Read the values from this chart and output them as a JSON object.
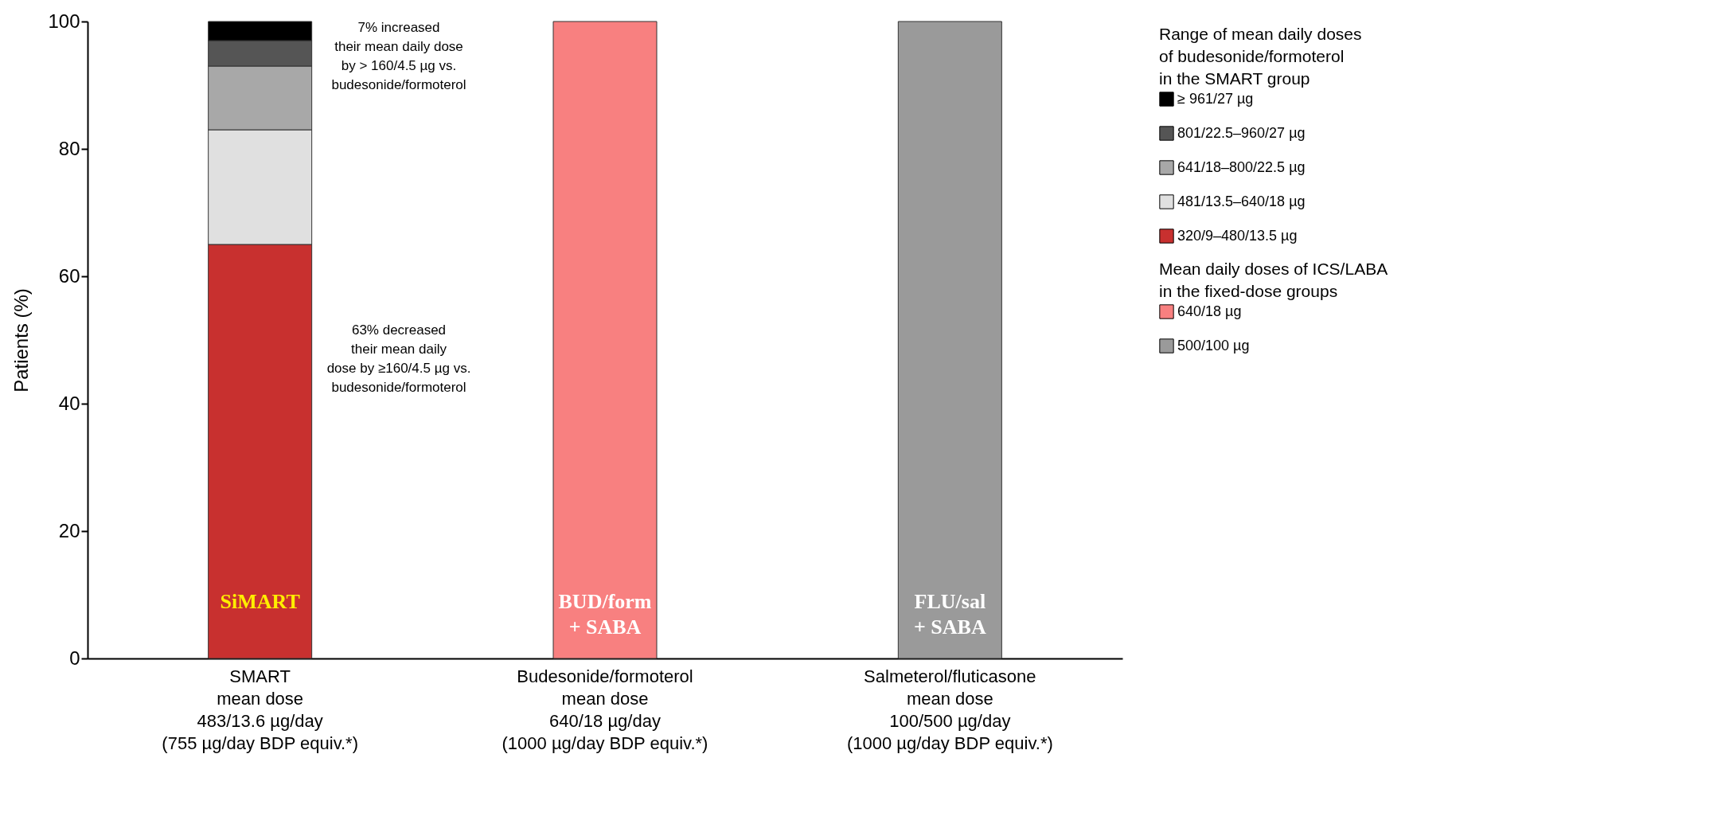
{
  "chart_data": {
    "type": "bar",
    "stacked": true,
    "ylabel": "Patients (%)",
    "legend_title": "Range of mean daily doses\nof budesonide/formoterol\nin the SMART group",
    "legend": "right",
    "categories": [
      "SMART\nmean dose\n483/13.6 µg/day\n(755 µg/day BDP equiv.*)",
      "Budesonide/formoterol\nmean dose\n640/18 µg/day\n(1000 µg/day BDP equiv.*)",
      "Salmeterol/fluticasone\nmean dose\n100/500 µg/day\n(1000 µg/day BDP equiv.*)"
    ],
    "series": [
      {
        "name": "320/9–480/13.5 µg",
        "color": "#c8302f",
        "values": [
          65,
          null,
          null
        ]
      },
      {
        "name": "481/13.5–640/18 µg",
        "color": "#e0e0e0",
        "values": [
          18,
          null,
          null
        ]
      },
      {
        "name": "641/18–800/22.5 µg",
        "color": "#a8a8a8",
        "values": [
          10,
          null,
          null
        ]
      },
      {
        "name": "801/22.5–960/27 µg",
        "color": "#555555",
        "values": [
          4,
          null,
          null
        ]
      },
      {
        "name": "≥ 961/27 µg",
        "color": "#000000",
        "values": [
          3,
          null,
          null
        ]
      },
      {
        "name": "640/18 µg",
        "color": "#f88080",
        "values": [
          null,
          100,
          null
        ]
      },
      {
        "name": "500/100 µg",
        "color": "#9a9a9a",
        "values": [
          null,
          null,
          100
        ]
      }
    ],
    "ylim": [
      0,
      100
    ],
    "yticks": [
      0,
      20,
      40,
      60,
      80,
      100
    ],
    "annotations": [
      "Mean daily doses of ICS/LABA\nin the fixed-dose groups",
      "7% increased\ntheir mean daily dose\nby > 160/4.5 µg vs.\nbudesonide/formoterol",
      "63% decreased\ntheir mean daily\ndose by ≥160/4.5 µg vs.\nbudesonide/formoterol",
      "SiMART",
      "BUD/form\n+ SABA",
      "FLU/sal\n+ SABA"
    ]
  }
}
